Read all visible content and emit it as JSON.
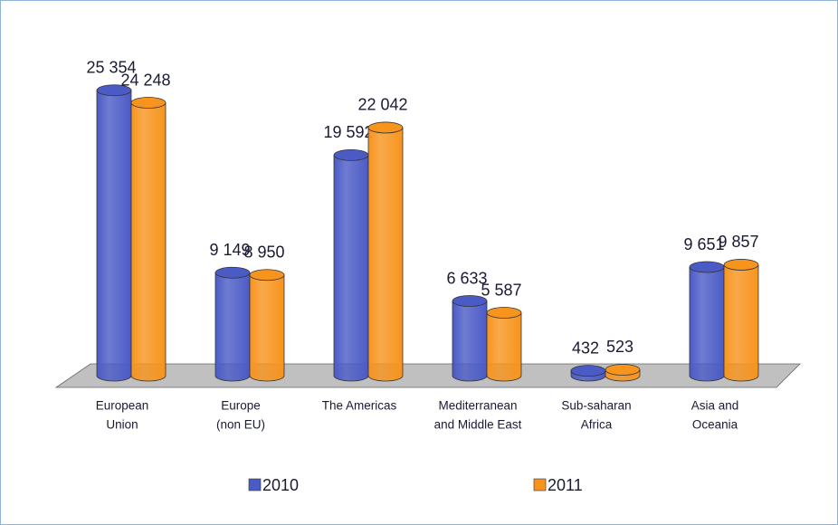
{
  "chart_data": {
    "type": "bar3d",
    "categories": [
      [
        "European",
        "Union"
      ],
      [
        "Europe",
        "(non EU)"
      ],
      [
        "The Americas"
      ],
      [
        "Mediterranean",
        "and Middle East"
      ],
      [
        "Sub-saharan",
        "Africa"
      ],
      [
        "Asia and",
        "Oceania"
      ]
    ],
    "series": [
      {
        "name": "2010",
        "color": "#4b5bc6",
        "values": [
          25354,
          9149,
          19592,
          6633,
          432,
          9651
        ],
        "value_labels": [
          "25 354",
          "9 149",
          "19 592",
          "6 633",
          "432",
          "9 651"
        ]
      },
      {
        "name": "2011",
        "color": "#f7941d",
        "values": [
          24248,
          8950,
          22042,
          5587,
          523,
          9857
        ],
        "value_labels": [
          "24 248",
          "8 950",
          "22 042",
          "5 587",
          "523",
          "9 857"
        ]
      }
    ],
    "ylim": [
      0,
      30000
    ]
  }
}
